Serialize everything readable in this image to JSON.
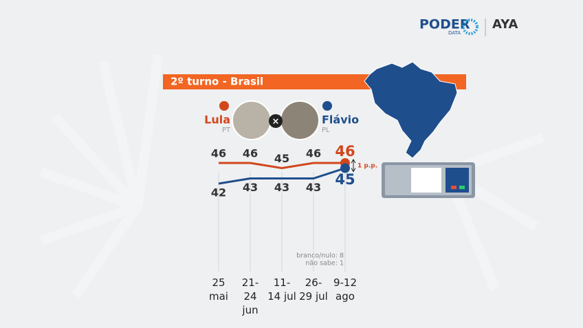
{
  "logo": {
    "brand": "PODER",
    "sub": "DATA",
    "partner": "AYA"
  },
  "chart_data": {
    "type": "line",
    "title": "2º turno - Brasil",
    "categories": [
      "25 mai",
      "21-24 jun",
      "11-14 jul",
      "26-29 jul",
      "9-12 ago"
    ],
    "series": [
      {
        "name": "Lula",
        "party": "PT",
        "color": "#d2461c",
        "values": [
          46,
          46,
          45,
          46,
          46
        ]
      },
      {
        "name": "Flávio",
        "party": "PL",
        "color": "#1f4e8c",
        "values": [
          42,
          43,
          43,
          43,
          45
        ]
      }
    ],
    "ylim": [
      40,
      48
    ],
    "annotation": "1 p.p.",
    "notes": [
      "branco/nulo: 8",
      "não sabe: 1"
    ]
  }
}
